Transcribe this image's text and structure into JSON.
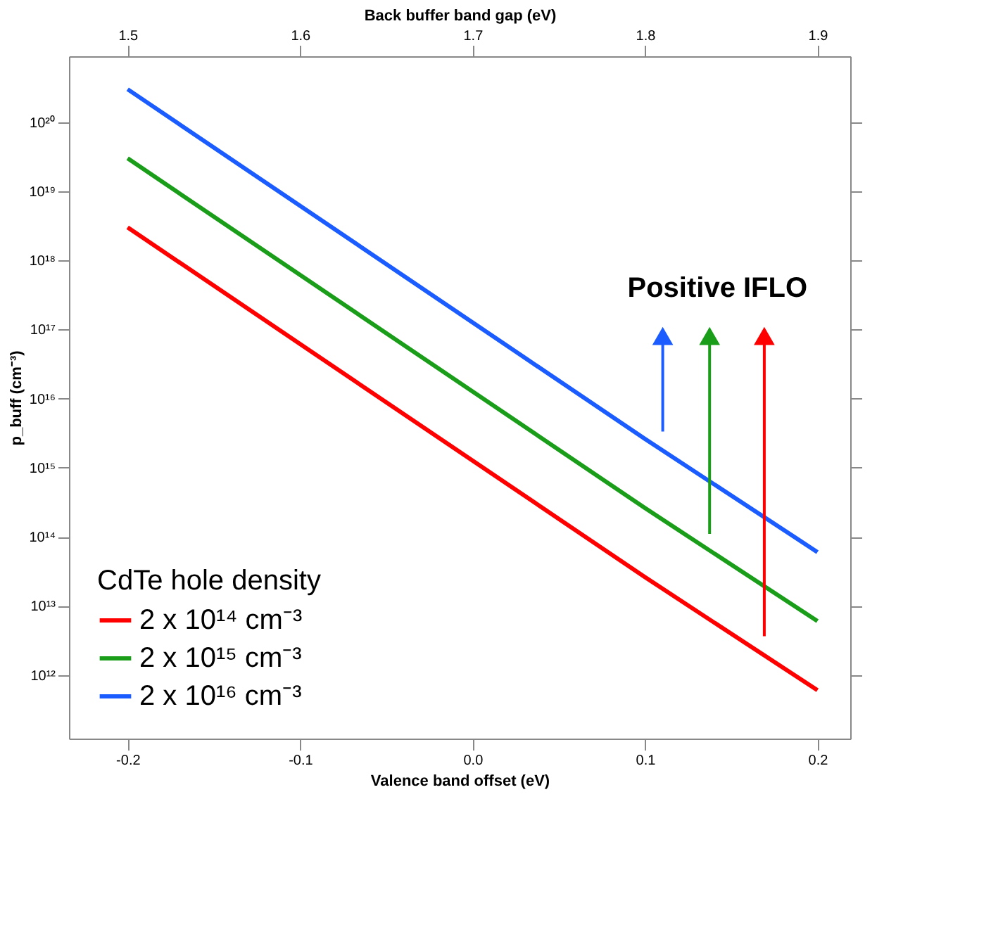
{
  "chart_data": {
    "type": "line",
    "xlabel": "Valence band offset (eV)",
    "ylabel": "p_buff (cm⁻³)",
    "x2label": "Back buffer band gap (eV)",
    "legend_title": "CdTe hole density",
    "x": [
      -0.2,
      0.1,
      0.2
    ],
    "series": [
      {
        "name": "2 x 10¹⁴ cm⁻³",
        "color": "#ff0000",
        "values": [
          3e+18,
          26000000000000.0,
          600000000000.0
        ]
      },
      {
        "name": "2 x 10¹⁵ cm⁻³",
        "color": "#1a9e1a",
        "values": [
          3e+19,
          260000000000000.0,
          6000000000000.0
        ]
      },
      {
        "name": "2 x 10¹⁶ cm⁻³",
        "color": "#1a5cff",
        "values": [
          3e+20,
          2600000000000000.0,
          60000000000000.0
        ]
      }
    ],
    "xlim": [
      -0.234,
      0.219
    ],
    "xticks": [
      {
        "value": -0.2,
        "label": "-0.2"
      },
      {
        "value": -0.1,
        "label": "-0.1"
      },
      {
        "value": 0.0,
        "label": "0.0"
      },
      {
        "value": 0.1,
        "label": "0.1"
      },
      {
        "value": 0.2,
        "label": "0.2"
      }
    ],
    "x2lim": [
      1.466,
      1.919
    ],
    "x2ticks": [
      1.5,
      1.6,
      1.7,
      1.8,
      1.9
    ],
    "ylim": [
      120000000000.0,
      9e+20
    ],
    "log": "y",
    "yticks": [
      {
        "value": 1000000000000.0,
        "label": "10¹²"
      },
      {
        "value": 10000000000000.0,
        "label": "10¹³"
      },
      {
        "value": 100000000000000.0,
        "label": "10¹⁴"
      },
      {
        "value": 1000000000000000.0,
        "label": "10¹⁵"
      },
      {
        "value": 1e+16,
        "label": "10¹⁶"
      },
      {
        "value": 1e+17,
        "label": "10¹⁷"
      },
      {
        "value": 1e+18,
        "label": "10¹⁸"
      },
      {
        "value": 1e+19,
        "label": "10¹⁹"
      },
      {
        "value": 1e+20,
        "label": "10²⁰"
      }
    ],
    "annotations": [
      "Positive IFLO"
    ],
    "legend": "bottom left",
    "grid": false
  }
}
